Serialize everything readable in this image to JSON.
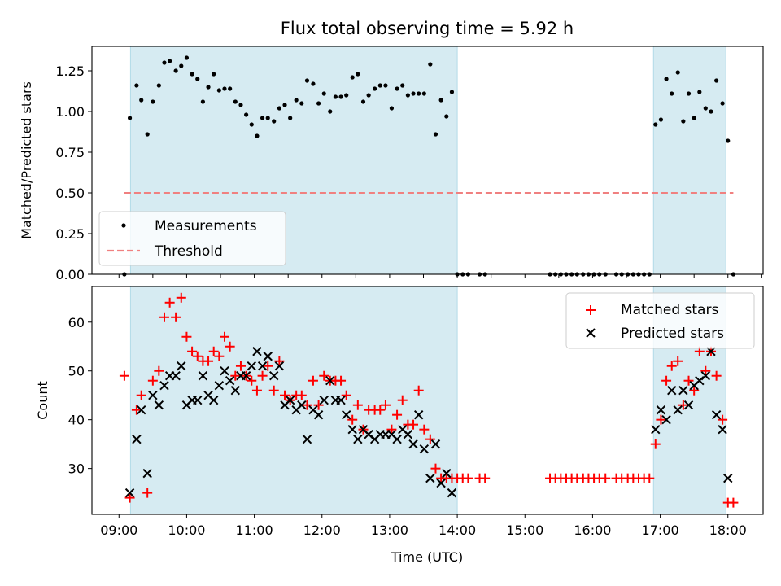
{
  "chart_data": {
    "title": "Flux total observing time = 5.92 h",
    "xlabel": "Time (UTC)",
    "x_ticks": [
      "09:00",
      "10:00",
      "11:00",
      "12:00",
      "13:00",
      "14:00",
      "15:00",
      "16:00",
      "17:00",
      "18:00"
    ],
    "x_tick_hours": [
      9,
      10,
      11,
      12,
      13,
      14,
      15,
      16,
      17,
      18
    ],
    "xlim_hours": [
      8.6,
      18.52
    ],
    "observing_windows_hours": [
      [
        9.17,
        14.0
      ],
      [
        16.9,
        17.97
      ]
    ],
    "colors": {
      "window": "#add8e6",
      "measurement": "#000000",
      "threshold": "#f08080",
      "matched": "#ff0000",
      "predicted": "#000000"
    },
    "panels": [
      {
        "type": "scatter",
        "ylabel": "Matched/Predicted stars",
        "ylim": [
          0,
          1.4
        ],
        "yticks": [
          "0.00",
          "0.25",
          "0.50",
          "0.75",
          "1.00",
          "1.25"
        ],
        "ytick_values": [
          0,
          0.25,
          0.5,
          0.75,
          1.0,
          1.25
        ],
        "legend": [
          "Measurements",
          "Threshold"
        ],
        "threshold": {
          "y": 0.5,
          "x_range": [
            9.08,
            18.08
          ]
        },
        "measurements": {
          "x": [
            9.08,
            9.16,
            9.26,
            9.33,
            9.42,
            9.5,
            9.59,
            9.67,
            9.75,
            9.84,
            9.92,
            10.0,
            10.08,
            10.16,
            10.24,
            10.32,
            10.4,
            10.48,
            10.56,
            10.64,
            10.72,
            10.8,
            10.88,
            10.96,
            11.04,
            11.12,
            11.2,
            11.29,
            11.37,
            11.45,
            11.53,
            11.62,
            11.7,
            11.78,
            11.87,
            11.95,
            12.03,
            12.12,
            12.2,
            12.28,
            12.36,
            12.45,
            12.53,
            12.61,
            12.69,
            12.78,
            12.86,
            12.94,
            13.03,
            13.11,
            13.19,
            13.27,
            13.35,
            13.43,
            13.51,
            13.6,
            13.68,
            13.76,
            13.84,
            13.92,
            14.0,
            14.08,
            14.16,
            14.33,
            14.41,
            15.37,
            15.45,
            15.53,
            15.61,
            15.69,
            15.77,
            15.86,
            15.94,
            16.02,
            16.1,
            16.19,
            16.35,
            16.43,
            16.52,
            16.6,
            16.68,
            16.76,
            16.84,
            16.93,
            17.01,
            17.09,
            17.17,
            17.26,
            17.34,
            17.42,
            17.5,
            17.58,
            17.67,
            17.75,
            17.83,
            17.92,
            18.0,
            18.08
          ],
          "y": [
            0.0,
            0.96,
            1.16,
            1.07,
            0.86,
            1.06,
            1.16,
            1.3,
            1.31,
            1.25,
            1.28,
            1.33,
            1.23,
            1.2,
            1.06,
            1.15,
            1.23,
            1.13,
            1.14,
            1.14,
            1.06,
            1.04,
            0.98,
            0.92,
            0.85,
            0.96,
            0.96,
            0.94,
            1.02,
            1.04,
            0.96,
            1.07,
            1.05,
            1.19,
            1.17,
            1.05,
            1.11,
            1.0,
            1.09,
            1.09,
            1.1,
            1.21,
            1.23,
            1.06,
            1.1,
            1.14,
            1.16,
            1.16,
            1.02,
            1.14,
            1.16,
            1.1,
            1.11,
            1.11,
            1.11,
            1.29,
            0.86,
            1.07,
            0.97,
            1.12,
            0.0,
            0.0,
            0.0,
            0.0,
            0.0,
            0.0,
            0.0,
            0.0,
            0.0,
            0.0,
            0.0,
            0.0,
            0.0,
            0.0,
            0.0,
            0.0,
            0.0,
            0.0,
            0.0,
            0.0,
            0.0,
            0.0,
            0.0,
            0.92,
            0.95,
            1.2,
            1.11,
            1.24,
            0.94,
            1.11,
            0.96,
            1.12,
            1.02,
            1.0,
            1.19,
            1.05,
            0.82,
            0.0
          ]
        }
      },
      {
        "type": "scatter",
        "ylabel": "Count",
        "ylim": [
          20.6,
          67.3
        ],
        "yticks": [
          "30",
          "40",
          "50",
          "60"
        ],
        "ytick_values": [
          30,
          40,
          50,
          60
        ],
        "legend": [
          "Matched stars",
          "Predicted stars"
        ],
        "series": [
          {
            "name": "Matched stars",
            "marker": "plus",
            "x": [
              9.08,
              9.16,
              9.26,
              9.33,
              9.42,
              9.5,
              9.59,
              9.67,
              9.75,
              9.84,
              9.92,
              10.0,
              10.08,
              10.16,
              10.24,
              10.32,
              10.4,
              10.48,
              10.56,
              10.64,
              10.72,
              10.8,
              10.88,
              10.96,
              11.04,
              11.12,
              11.2,
              11.29,
              11.37,
              11.45,
              11.53,
              11.62,
              11.7,
              11.78,
              11.87,
              11.95,
              12.03,
              12.12,
              12.2,
              12.28,
              12.36,
              12.45,
              12.53,
              12.61,
              12.69,
              12.78,
              12.86,
              12.94,
              13.03,
              13.11,
              13.19,
              13.27,
              13.35,
              13.43,
              13.51,
              13.6,
              13.68,
              13.76,
              13.84,
              13.92,
              14.0,
              14.08,
              14.16,
              14.33,
              14.41,
              15.37,
              15.45,
              15.53,
              15.61,
              15.69,
              15.77,
              15.86,
              15.94,
              16.02,
              16.1,
              16.19,
              16.35,
              16.43,
              16.52,
              16.6,
              16.68,
              16.76,
              16.84,
              16.93,
              17.01,
              17.09,
              17.17,
              17.26,
              17.34,
              17.42,
              17.5,
              17.58,
              17.67,
              17.75,
              17.83,
              17.92,
              18.0,
              18.08
            ],
            "y": [
              49,
              24,
              42,
              45,
              25,
              48,
              50,
              61,
              64,
              61,
              65,
              57,
              54,
              53,
              52,
              52,
              54,
              53,
              57,
              55,
              49,
              51,
              49,
              48,
              46,
              49,
              51,
              46,
              52,
              45,
              44,
              45,
              45,
              43,
              48,
              43,
              49,
              48,
              48,
              48,
              45,
              40,
              43,
              38,
              42,
              42,
              42,
              43,
              38,
              41,
              44,
              39,
              39,
              46,
              38,
              36,
              30,
              28,
              28,
              28,
              28,
              28,
              28,
              28,
              28,
              28,
              28,
              28,
              28,
              28,
              28,
              28,
              28,
              28,
              28,
              28,
              28,
              28,
              28,
              28,
              28,
              28,
              28,
              35,
              40,
              48,
              51,
              52,
              43,
              48,
              46,
              54,
              50,
              54,
              49,
              40,
              23,
              23
            ]
          },
          {
            "name": "Predicted stars",
            "marker": "x",
            "x": [
              9.16,
              9.26,
              9.33,
              9.42,
              9.5,
              9.59,
              9.67,
              9.75,
              9.84,
              9.92,
              10.0,
              10.08,
              10.16,
              10.24,
              10.32,
              10.4,
              10.48,
              10.56,
              10.64,
              10.72,
              10.8,
              10.88,
              10.96,
              11.04,
              11.12,
              11.2,
              11.29,
              11.37,
              11.45,
              11.53,
              11.62,
              11.7,
              11.78,
              11.87,
              11.95,
              12.03,
              12.12,
              12.2,
              12.28,
              12.36,
              12.45,
              12.53,
              12.61,
              12.69,
              12.78,
              12.86,
              12.94,
              13.03,
              13.11,
              13.19,
              13.27,
              13.35,
              13.43,
              13.51,
              13.6,
              13.68,
              13.76,
              13.84,
              13.92,
              16.93,
              17.01,
              17.09,
              17.17,
              17.26,
              17.34,
              17.42,
              17.5,
              17.58,
              17.67,
              17.75,
              17.83,
              17.92,
              18.0
            ],
            "y": [
              25,
              36,
              42,
              29,
              45,
              43,
              47,
              49,
              49,
              51,
              43,
              44,
              44,
              49,
              45,
              44,
              47,
              50,
              48,
              46,
              49,
              49,
              51,
              54,
              51,
              53,
              49,
              51,
              43,
              44,
              42,
              43,
              36,
              42,
              41,
              44,
              48,
              44,
              44,
              41,
              38,
              36,
              38,
              37,
              36,
              37,
              37,
              37,
              36,
              38,
              37,
              35,
              41,
              34,
              28,
              35,
              27,
              29,
              25,
              38,
              42,
              40,
              46,
              42,
              46,
              43,
              47,
              48,
              49,
              54,
              41,
              38,
              28
            ]
          }
        ]
      }
    ]
  }
}
